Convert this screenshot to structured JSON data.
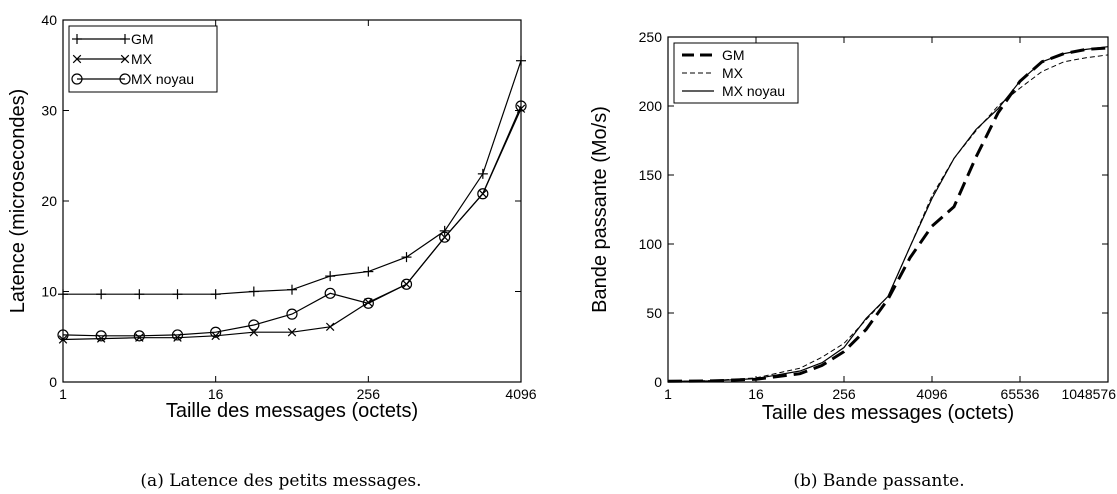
{
  "chart_data": [
    {
      "type": "line",
      "xlabel": "Taille des messages (octets)",
      "ylabel": "Latence (microsecondes)",
      "caption": "(a) Latence des petits messages.",
      "x_scale": "log2",
      "x_ticks": [
        "1",
        "16",
        "256",
        "4096"
      ],
      "y_ticks": [
        "0",
        "10",
        "20",
        "30",
        "40"
      ],
      "xlim": [
        1,
        4096
      ],
      "ylim": [
        0,
        40
      ],
      "legend_position": "top-left",
      "series": [
        {
          "name": "GM",
          "marker": "plus",
          "points": [
            [
              1,
              9.7
            ],
            [
              2,
              9.7
            ],
            [
              4,
              9.7
            ],
            [
              8,
              9.7
            ],
            [
              16,
              9.7
            ],
            [
              32,
              10.0
            ],
            [
              64,
              10.2
            ],
            [
              128,
              11.7
            ],
            [
              256,
              12.2
            ],
            [
              512,
              13.8
            ],
            [
              1024,
              16.7
            ],
            [
              2048,
              23.0
            ],
            [
              4096,
              35.5
            ]
          ]
        },
        {
          "name": "MX",
          "marker": "cross",
          "points": [
            [
              1,
              4.7
            ],
            [
              2,
              4.8
            ],
            [
              4,
              4.9
            ],
            [
              8,
              4.9
            ],
            [
              16,
              5.1
            ],
            [
              32,
              5.5
            ],
            [
              64,
              5.5
            ],
            [
              128,
              6.1
            ],
            [
              256,
              8.8
            ],
            [
              512,
              10.8
            ],
            [
              1024,
              16.0
            ],
            [
              2048,
              20.8
            ],
            [
              4096,
              30.2
            ]
          ]
        },
        {
          "name": "MX noyau",
          "marker": "circle",
          "points": [
            [
              1,
              5.2
            ],
            [
              2,
              5.1
            ],
            [
              4,
              5.1
            ],
            [
              8,
              5.2
            ],
            [
              16,
              5.5
            ],
            [
              32,
              6.3
            ],
            [
              64,
              7.5
            ],
            [
              128,
              9.8
            ],
            [
              256,
              8.7
            ],
            [
              512,
              10.8
            ],
            [
              1024,
              16.0
            ],
            [
              2048,
              20.8
            ],
            [
              4096,
              30.5
            ]
          ]
        }
      ]
    },
    {
      "type": "line",
      "xlabel": "Taille des messages (octets)",
      "ylabel": "Bande passante (Mo/s)",
      "caption": "(b) Bande passante.",
      "x_scale": "log2",
      "x_ticks": [
        "1",
        "16",
        "256",
        "4096",
        "65536",
        "1048576"
      ],
      "y_ticks": [
        "0",
        "50",
        "100",
        "150",
        "200",
        "250"
      ],
      "xlim": [
        1,
        1048576
      ],
      "ylim": [
        0,
        250
      ],
      "legend_position": "top-left",
      "series": [
        {
          "name": "GM",
          "style": "thick-dashed",
          "points": [
            [
              1,
              0.5
            ],
            [
              4,
              0.8
            ],
            [
              16,
              2.0
            ],
            [
              64,
              6.0
            ],
            [
              128,
              12.0
            ],
            [
              256,
              22.0
            ],
            [
              512,
              38.0
            ],
            [
              1024,
              60.0
            ],
            [
              2048,
              90.0
            ],
            [
              4096,
              113.0
            ],
            [
              8192,
              127.0
            ],
            [
              16384,
              163.0
            ],
            [
              32768,
              195.0
            ],
            [
              65536,
              218.0
            ],
            [
              131072,
              232.0
            ],
            [
              262144,
              238.0
            ],
            [
              524288,
              241.0
            ],
            [
              1048576,
              242.0
            ]
          ]
        },
        {
          "name": "MX",
          "style": "thin-dashed",
          "points": [
            [
              1,
              0.5
            ],
            [
              4,
              1.0
            ],
            [
              16,
              3.0
            ],
            [
              64,
              10.0
            ],
            [
              128,
              18.0
            ],
            [
              256,
              28.0
            ],
            [
              512,
              45.0
            ],
            [
              1024,
              62.0
            ],
            [
              2048,
              98.0
            ],
            [
              4096,
              135.0
            ],
            [
              8192,
              162.0
            ],
            [
              16384,
              182.0
            ],
            [
              32768,
              200.0
            ],
            [
              65536,
              213.0
            ],
            [
              131072,
              225.0
            ],
            [
              262144,
              232.0
            ],
            [
              524288,
              235.0
            ],
            [
              1048576,
              237.0
            ]
          ]
        },
        {
          "name": "MX noyau",
          "style": "solid",
          "points": [
            [
              1,
              0.5
            ],
            [
              4,
              0.8
            ],
            [
              16,
              2.5
            ],
            [
              64,
              8.0
            ],
            [
              128,
              14.0
            ],
            [
              256,
              25.0
            ],
            [
              512,
              46.0
            ],
            [
              1024,
              62.0
            ],
            [
              2048,
              98.0
            ],
            [
              4096,
              133.0
            ],
            [
              8192,
              162.0
            ],
            [
              16384,
              183.0
            ],
            [
              32768,
              198.0
            ],
            [
              65536,
              218.0
            ],
            [
              131072,
              232.0
            ],
            [
              262144,
              238.0
            ],
            [
              524288,
              241.0
            ],
            [
              1048576,
              243.0
            ]
          ]
        }
      ]
    }
  ]
}
